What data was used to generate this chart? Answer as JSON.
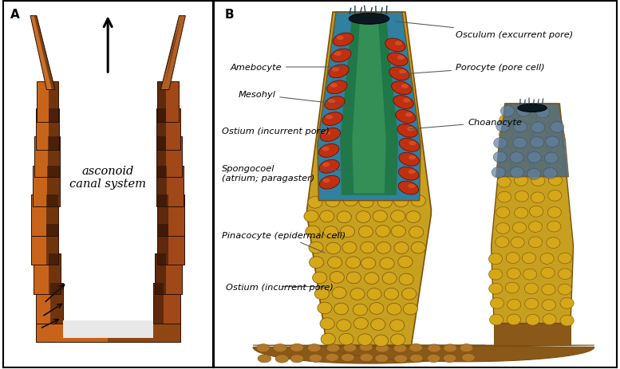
{
  "fig_width": 7.77,
  "fig_height": 4.64,
  "dpi": 100,
  "bg_color": "#ffffff",
  "border_color": "#000000",
  "panel_A_label": "A",
  "panel_B_label": "B",
  "panel_A_text": "asconoid\ncanal system",
  "sponge_A": {
    "wall_orange": "#c8641a",
    "wall_dark": "#2a1005",
    "wall_mid": "#a04818",
    "base_color": "#c07030",
    "spicule_tip": "#c07030"
  },
  "sponge_B": {
    "outer_yellow": "#c8a020",
    "outer_dark": "#7a5010",
    "blue_teal": "#3080a0",
    "green_inner": "#207848",
    "green_light": "#40a060",
    "cell_red": "#c03010",
    "cell_dark": "#601008",
    "base_brown": "#8a5818",
    "pinacocyte_yellow": "#d4a818",
    "small_sponge_blue": "#4a6880"
  },
  "label_fontsize": 8.2,
  "label_style": "italic",
  "panel_label_fontsize": 11,
  "panel_label_weight": "bold"
}
